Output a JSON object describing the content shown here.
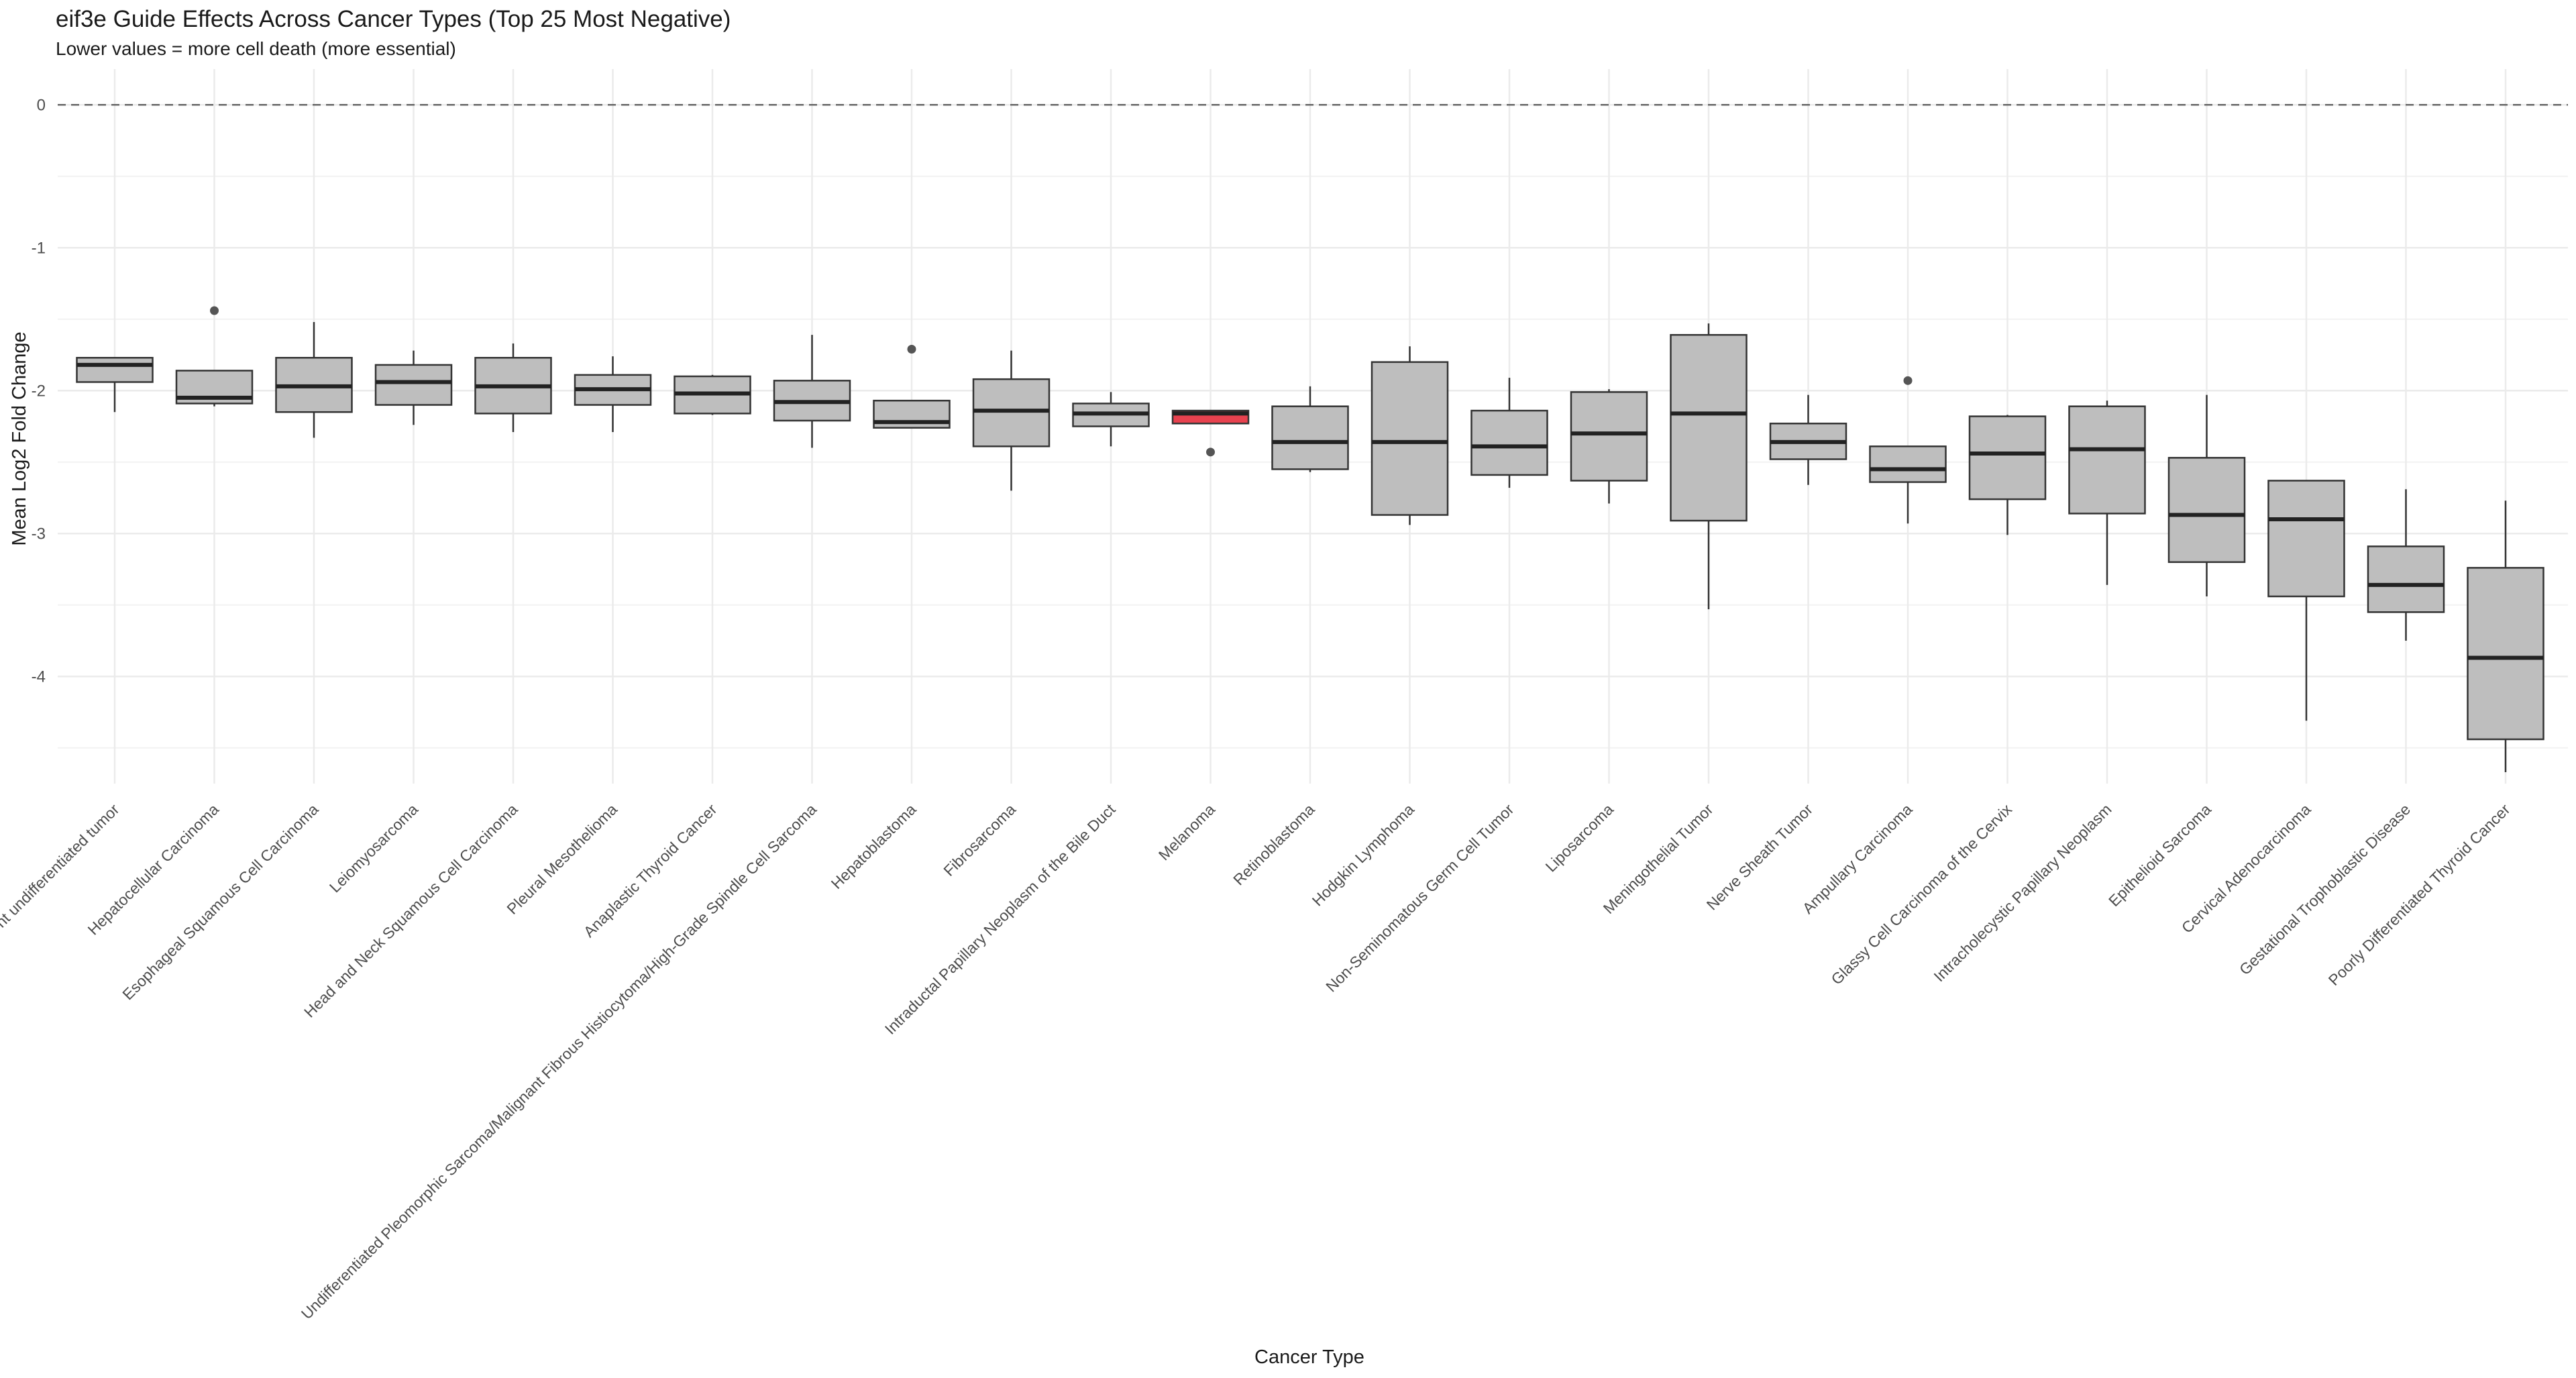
{
  "chart_data": {
    "type": "box",
    "title": "eif3e Guide Effects Across Cancer Types (Top 25 Most Negative)",
    "subtitle": "Lower values = more cell death (more essential)",
    "x_label": "Cancer Type",
    "y_label": "Mean Log2 Fold Change",
    "categories": [
      "nt undifferentiated tumor",
      "Hepatocellular Carcinoma",
      "Esophageal Squamous Cell Carcinoma",
      "Leiomyosarcoma",
      "Head and Neck Squamous Cell Carcinoma",
      "Pleural Mesothelioma",
      "Anaplastic Thyroid Cancer",
      "Undifferentiated Pleomorphic Sarcoma/Malignant Fibrous Histiocytoma/High-Grade Spindle Cell Sarcoma",
      "Hepatoblastoma",
      "Fibrosarcoma",
      "Intraductal Papillary Neoplasm of the Bile Duct",
      "Melanoma",
      "Retinoblastoma",
      "Hodgkin Lymphoma",
      "Non-Seminomatous Germ Cell Tumor",
      "Liposarcoma",
      "Meningothelial Tumor",
      "Nerve Sheath Tumor",
      "Ampullary Carcinoma",
      "Glassy Cell Carcinoma of the Cervix",
      "Intracholecystic Papillary Neoplasm",
      "Epithelioid Sarcoma",
      "Cervical Adenocarcinoma",
      "Gestational Trophoblastic Disease",
      "Poorly Differentiated Thyroid Cancer"
    ],
    "high": [
      -1.77,
      -1.86,
      -1.52,
      -1.72,
      -1.67,
      -1.76,
      -1.89,
      -1.61,
      -2.07,
      -1.72,
      -2.01,
      -2.14,
      -1.97,
      -1.69,
      -1.91,
      -1.99,
      -1.53,
      -2.03,
      -2.39,
      -2.17,
      -2.07,
      -2.03,
      -2.63,
      -2.69,
      -2.77
    ],
    "q3": [
      -1.77,
      -1.86,
      -1.77,
      -1.82,
      -1.77,
      -1.89,
      -1.9,
      -1.93,
      -2.07,
      -1.92,
      -2.09,
      -2.14,
      -2.11,
      -1.8,
      -2.14,
      -2.01,
      -1.61,
      -2.23,
      -2.39,
      -2.18,
      -2.11,
      -2.47,
      -2.63,
      -3.09,
      -3.24
    ],
    "median": [
      -1.82,
      -2.05,
      -1.97,
      -1.94,
      -1.97,
      -1.99,
      -2.02,
      -2.08,
      -2.22,
      -2.14,
      -2.16,
      -2.16,
      -2.36,
      -2.36,
      -2.39,
      -2.3,
      -2.16,
      -2.36,
      -2.55,
      -2.44,
      -2.41,
      -2.87,
      -2.9,
      -3.36,
      -3.87
    ],
    "q1": [
      -1.94,
      -2.09,
      -2.15,
      -2.1,
      -2.16,
      -2.1,
      -2.16,
      -2.21,
      -2.26,
      -2.39,
      -2.25,
      -2.23,
      -2.55,
      -2.87,
      -2.59,
      -2.63,
      -2.91,
      -2.48,
      -2.64,
      -2.76,
      -2.86,
      -3.2,
      -3.44,
      -3.55,
      -4.44
    ],
    "low": [
      -2.15,
      -2.11,
      -2.33,
      -2.24,
      -2.29,
      -2.29,
      -2.17,
      -2.4,
      -2.26,
      -2.7,
      -2.39,
      -2.23,
      -2.57,
      -2.94,
      -2.68,
      -2.79,
      -3.53,
      -2.66,
      -2.93,
      -3.01,
      -3.36,
      -3.44,
      -4.31,
      -3.75,
      -4.67
    ],
    "outliers": [
      [],
      [
        -1.44
      ],
      [],
      [],
      [],
      [],
      [],
      [],
      [
        -1.71
      ],
      [],
      [],
      [
        -2.43
      ],
      [],
      [],
      [],
      [],
      [],
      [],
      [
        -1.93
      ],
      [],
      [],
      [],
      [],
      [],
      []
    ],
    "colors": [
      "#bebebe",
      "#bebebe",
      "#bebebe",
      "#bebebe",
      "#bebebe",
      "#bebebe",
      "#bebebe",
      "#bebebe",
      "#bebebe",
      "#bebebe",
      "#bebebe",
      "#e8424f",
      "#bebebe",
      "#bebebe",
      "#bebebe",
      "#bebebe",
      "#bebebe",
      "#bebebe",
      "#bebebe",
      "#bebebe",
      "#bebebe",
      "#bebebe",
      "#bebebe",
      "#bebebe",
      "#bebebe"
    ],
    "ylim": [
      -4.75,
      0.25
    ],
    "yticks": [
      0,
      -1,
      -2,
      -3,
      -4
    ],
    "minor_grid": [
      -0.5,
      -1.5,
      -2.5,
      -3.5,
      -4.5
    ],
    "grid": true,
    "hline": 0
  }
}
